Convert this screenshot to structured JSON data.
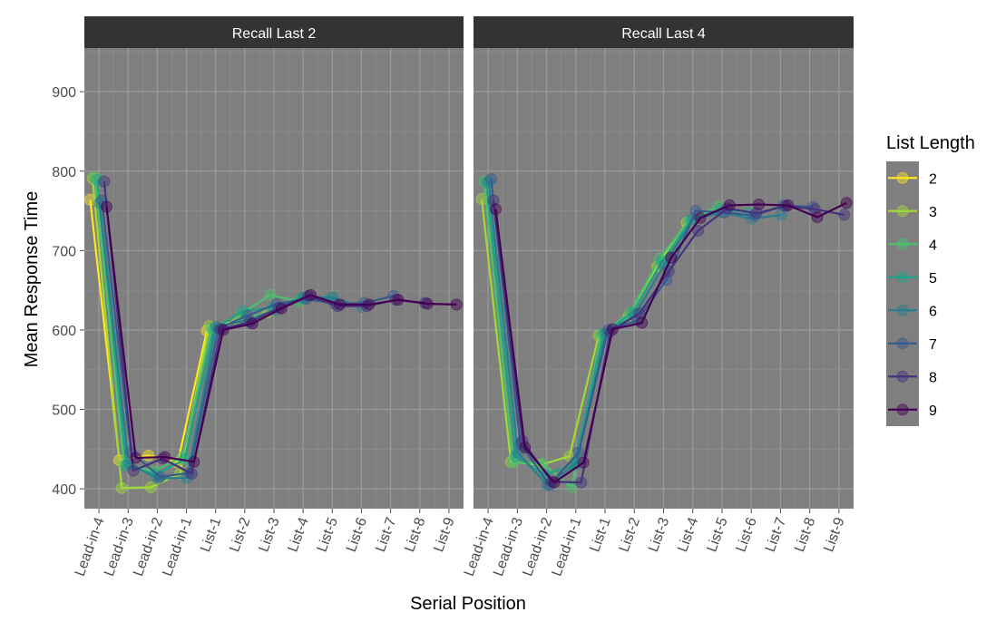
{
  "chart_data": {
    "type": "line",
    "xlabel": "Serial Position",
    "ylabel": "Mean Response Time",
    "categories": [
      "Lead-in-4",
      "Lead-in-3",
      "Lead-in-2",
      "Lead-in-1",
      "List-1",
      "List-2",
      "List-3",
      "List-4",
      "List-5",
      "List-6",
      "List-7",
      "List-8",
      "List-9"
    ],
    "ylim": [
      375,
      955
    ],
    "yticks": [
      400,
      500,
      600,
      700,
      800,
      900
    ],
    "grid": true,
    "legend": {
      "title": "List Length",
      "position": "right",
      "entries": [
        "2",
        "3",
        "4",
        "5",
        "6",
        "7",
        "8",
        "9"
      ]
    },
    "colors": {
      "2": "#fde725",
      "3": "#a0da39",
      "4": "#4ac16d",
      "5": "#1fa187",
      "6": "#277f8e",
      "7": "#365c8d",
      "8": "#46327e",
      "9": "#440154"
    },
    "dodge": {
      "2": -0.3,
      "3": -0.22,
      "4": -0.14,
      "5": -0.06,
      "6": 0.02,
      "7": 0.1,
      "8": 0.18,
      "9": 0.26
    },
    "panels": [
      {
        "title": "Recall Last 2",
        "series": [
          {
            "name": "2",
            "values": [
              764,
              436,
              442,
              433,
              599,
              null,
              null,
              null,
              null,
              null,
              null,
              null,
              null
            ]
          },
          {
            "name": "3",
            "values": [
              791,
              401,
              402,
              419,
              605,
              611,
              622,
              null,
              null,
              null,
              null,
              null,
              null
            ]
          },
          {
            "name": "4",
            "values": [
              792,
              432,
              422,
              440,
              602,
              620,
              644,
              636,
              null,
              null,
              null,
              null,
              null
            ]
          },
          {
            "name": "5",
            "values": [
              789,
              429,
              418,
              437,
              601,
              624,
              628,
              640,
              639,
              null,
              null,
              null,
              null
            ]
          },
          {
            "name": "6",
            "values": [
              760,
              432,
              413,
              414,
              604,
              612,
              625,
              641,
              641,
              629,
              null,
              null,
              null
            ]
          },
          {
            "name": "7",
            "values": [
              763,
              446,
              415,
              420,
              602,
              618,
              633,
              639,
              633,
              634,
              643,
              null,
              null
            ]
          },
          {
            "name": "8",
            "values": [
              787,
              423,
              438,
              419,
              601,
              610,
              628,
              643,
              630,
              630,
              638,
              634,
              null
            ]
          },
          {
            "name": "9",
            "values": [
              755,
              439,
              440,
              434,
              600,
              608,
              627,
              644,
              632,
              632,
              638,
              633,
              632
            ]
          }
        ]
      },
      {
        "title": "Recall Last 4",
        "series": [
          {
            "name": "2",
            "values": [
              null,
              null,
              null,
              null,
              null,
              null,
              null,
              null,
              null,
              null,
              null,
              null,
              null
            ]
          },
          {
            "name": "3",
            "values": [
              765,
              434,
              430,
              441,
              593,
              616,
              680,
              735,
              null,
              null,
              null,
              null,
              null
            ]
          },
          {
            "name": "4",
            "values": [
              787,
              433,
              432,
              402,
              594,
              622,
              690,
              737,
              756,
              null,
              null,
              null,
              null
            ]
          },
          {
            "name": "5",
            "values": [
              786,
              441,
              418,
              430,
              595,
              622,
              686,
              738,
              752,
              748,
              null,
              null,
              null
            ]
          },
          {
            "name": "6",
            "values": [
              786,
              445,
              405,
              432,
              596,
              619,
              682,
              740,
              748,
              740,
              745,
              null,
              null
            ]
          },
          {
            "name": "7",
            "values": [
              790,
              457,
              405,
              446,
              600,
              612,
              663,
              750,
              748,
              744,
              757,
              755,
              null
            ]
          },
          {
            "name": "8",
            "values": [
              763,
              460,
              409,
              408,
              598,
              621,
              674,
              725,
              753,
              747,
              756,
              752,
              745
            ]
          },
          {
            "name": "9",
            "values": [
              752,
              452,
              408,
              433,
              601,
              609,
              691,
              741,
              757,
              758,
              757,
              742,
              760
            ]
          }
        ]
      }
    ]
  }
}
